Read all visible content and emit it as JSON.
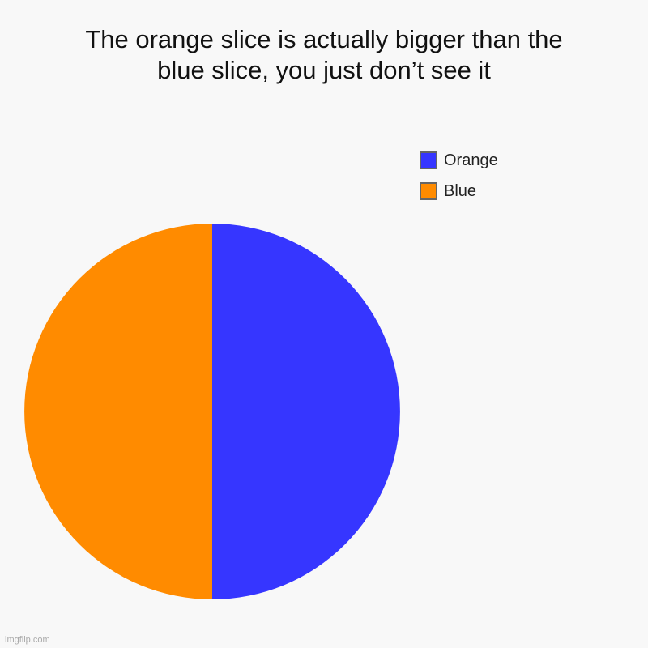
{
  "chart_data": {
    "type": "pie",
    "title_lines": [
      "The orange slice is actually bigger than the",
      "blue slice, you just don’t see it"
    ],
    "slices": [
      {
        "name": "Orange",
        "value": 50,
        "color": "#3636ff"
      },
      {
        "name": "Blue",
        "value": 50,
        "color": "#ff8b00"
      }
    ],
    "legend_placement": "top-right"
  },
  "watermark": "imgflip.com"
}
